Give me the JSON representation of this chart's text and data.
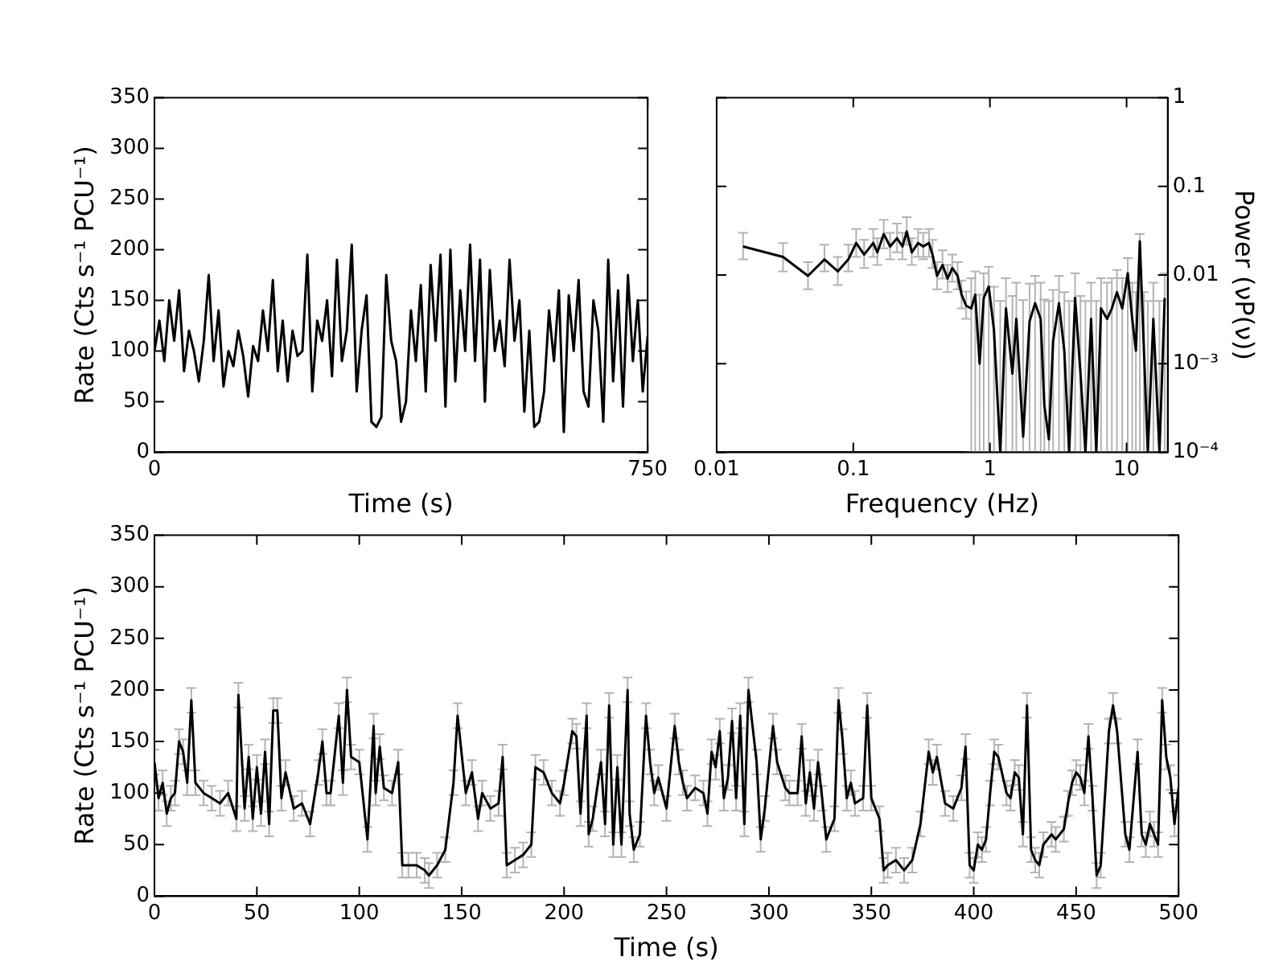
{
  "chart_data": [
    {
      "type": "line",
      "xlabel": "Time (s)",
      "ylabel": "Rate (Cts s⁻¹ PCU⁻¹)",
      "color": "#000000",
      "marker": "none",
      "grid": false,
      "xlim": [
        0,
        750
      ],
      "xticks": [
        0,
        750
      ],
      "ylim": [
        0,
        350
      ],
      "yticks": [
        0,
        50,
        100,
        150,
        200,
        250,
        300,
        350
      ],
      "x": [
        0,
        7.5,
        15,
        22.5,
        30,
        37.5,
        45,
        52.5,
        60,
        67.5,
        75,
        82.5,
        90,
        97.5,
        105,
        112.5,
        120,
        127.5,
        135,
        142.5,
        150,
        157.5,
        165,
        172.5,
        180,
        187.5,
        195,
        202.5,
        210,
        217.5,
        225,
        232.5,
        240,
        247.5,
        255,
        262.5,
        270,
        277.5,
        285,
        292.5,
        300,
        307.5,
        315,
        322.5,
        330,
        337.5,
        345,
        352.5,
        360,
        367.5,
        375,
        382.5,
        390,
        397.5,
        405,
        412.5,
        420,
        427.5,
        435,
        442.5,
        450,
        457.5,
        465,
        472.5,
        480,
        487.5,
        495,
        502.5,
        510,
        517.5,
        525,
        532.5,
        540,
        547.5,
        555,
        562.5,
        570,
        577.5,
        585,
        592.5,
        600,
        607.5,
        615,
        622.5,
        630,
        637.5,
        645,
        652.5,
        660,
        667.5,
        675,
        682.5,
        690,
        697.5,
        705,
        712.5,
        720,
        727.5,
        735,
        742.5,
        750
      ],
      "values": [
        100,
        130,
        90,
        150,
        110,
        160,
        80,
        120,
        100,
        70,
        110,
        175,
        90,
        140,
        65,
        100,
        85,
        120,
        95,
        55,
        105,
        90,
        140,
        100,
        170,
        80,
        130,
        70,
        120,
        95,
        100,
        195,
        60,
        130,
        110,
        150,
        75,
        190,
        90,
        120,
        205,
        60,
        120,
        155,
        30,
        25,
        35,
        175,
        110,
        90,
        30,
        50,
        140,
        90,
        165,
        60,
        185,
        110,
        195,
        45,
        200,
        70,
        160,
        100,
        205,
        90,
        190,
        50,
        180,
        100,
        130,
        85,
        190,
        110,
        150,
        40,
        120,
        25,
        30,
        60,
        140,
        90,
        160,
        20,
        155,
        100,
        170,
        60,
        45,
        150,
        120,
        30,
        190,
        70,
        160,
        45,
        175,
        90,
        150,
        60,
        115
      ]
    },
    {
      "type": "line",
      "xlabel": "Frequency (Hz)",
      "ylabel": "Power (νP(ν))",
      "color": "#000000",
      "marker": "none",
      "grid": false,
      "log": "xy",
      "xlim": [
        0.01,
        20
      ],
      "xticks": [
        0.01,
        0.1,
        1,
        10
      ],
      "ylim": [
        0.0001,
        1
      ],
      "yticks": [
        {
          "value": 0.0001,
          "label": "10⁻⁴"
        },
        {
          "value": 0.001,
          "label": "10⁻³"
        },
        0.01,
        0.1,
        1
      ],
      "x": [
        0.0156,
        0.0306,
        0.0466,
        0.0615,
        0.077,
        0.092,
        0.105,
        0.12,
        0.14,
        0.15,
        0.167,
        0.186,
        0.209,
        0.229,
        0.246,
        0.268,
        0.298,
        0.325,
        0.358,
        0.38,
        0.41,
        0.45,
        0.49,
        0.53,
        0.58,
        0.62,
        0.67,
        0.73,
        0.78,
        0.84,
        0.9,
        0.98,
        1.07,
        1.19,
        1.31,
        1.46,
        1.56,
        1.75,
        1.95,
        2.14,
        2.35,
        2.5,
        2.7,
        2.9,
        3.2,
        3.5,
        3.8,
        4.2,
        4.6,
        5,
        5.5,
        6,
        6.5,
        7.2,
        7.8,
        8.5,
        9.3,
        10.2,
        11,
        11.7,
        12.5,
        13.4,
        14.3,
        15.7,
        17.4,
        19
      ],
      "values": [
        0.021,
        0.016,
        0.0098,
        0.015,
        0.011,
        0.015,
        0.023,
        0.017,
        0.023,
        0.018,
        0.029,
        0.021,
        0.026,
        0.021,
        0.031,
        0.018,
        0.023,
        0.021,
        0.023,
        0.017,
        0.0098,
        0.013,
        0.0091,
        0.012,
        0.0098,
        0.006,
        0.0045,
        0.0042,
        0.006,
        0.001,
        0.0055,
        0.0074,
        0.0024,
        0.0001,
        0.0042,
        0.00077,
        0.0032,
        0.00015,
        0.003,
        0.0048,
        0.0032,
        0.00034,
        0.00014,
        0.0018,
        0.0048,
        0.0014,
        0.0001,
        0.0055,
        0.00077,
        0.0001,
        0.0032,
        0.0001,
        0.0042,
        0.0032,
        0.0042,
        0.0064,
        0.0042,
        0.0105,
        0.0032,
        0.0014,
        0.024,
        0.0014,
        0.0001,
        0.0032,
        0.0001,
        0.0055
      ],
      "errors": [
        [
          0.015,
          0.03
        ],
        [
          0.011,
          0.023
        ],
        [
          0.0069,
          0.014
        ],
        [
          0.011,
          0.022
        ],
        [
          0.0077,
          0.016
        ],
        [
          0.011,
          0.022
        ],
        [
          0.016,
          0.033
        ],
        [
          0.012,
          0.025
        ],
        [
          0.016,
          0.033
        ],
        [
          0.013,
          0.026
        ],
        [
          0.02,
          0.042
        ],
        [
          0.015,
          0.03
        ],
        [
          0.018,
          0.038
        ],
        [
          0.015,
          0.03
        ],
        [
          0.022,
          0.045
        ],
        [
          0.013,
          0.026
        ],
        [
          0.016,
          0.033
        ],
        [
          0.015,
          0.03
        ],
        [
          0.016,
          0.033
        ],
        [
          0.012,
          0.025
        ],
        [
          0.0069,
          0.014
        ],
        [
          0.0091,
          0.019
        ],
        [
          0.0064,
          0.013
        ],
        [
          0.0084,
          0.017
        ],
        [
          0.0069,
          0.014
        ],
        [
          0.0042,
          0.0087
        ],
        [
          0.0032,
          0.0065
        ],
        [
          0.0001,
          0.0092
        ],
        [
          0.0001,
          0.011
        ],
        [
          0.0001,
          0.006
        ],
        [
          0.0001,
          0.0105
        ],
        [
          0.0001,
          0.0124
        ],
        [
          0.0001,
          0.0074
        ],
        [
          0.0001,
          0.0051
        ],
        [
          0.0001,
          0.0092
        ],
        [
          0.0001,
          0.0058
        ],
        [
          0.0001,
          0.0082
        ],
        [
          0.0001,
          0.0052
        ],
        [
          0.0001,
          0.008
        ],
        [
          0.0001,
          0.0098
        ],
        [
          0.0001,
          0.0082
        ],
        [
          0.0001,
          0.0053
        ],
        [
          0.0001,
          0.0051
        ],
        [
          0.0001,
          0.0068
        ],
        [
          0.0001,
          0.0098
        ],
        [
          0.0001,
          0.0064
        ],
        [
          0.0001,
          0.0051
        ],
        [
          0.0001,
          0.0105
        ],
        [
          0.0001,
          0.0058
        ],
        [
          0.0001,
          0.0051
        ],
        [
          0.0001,
          0.0082
        ],
        [
          0.0001,
          0.0051
        ],
        [
          0.0001,
          0.0092
        ],
        [
          0.0001,
          0.0082
        ],
        [
          0.0001,
          0.0092
        ],
        [
          0.0001,
          0.0114
        ],
        [
          0.0001,
          0.0092
        ],
        [
          0.0001,
          0.0155
        ],
        [
          0.0001,
          0.0082
        ],
        [
          0.0001,
          0.0064
        ],
        [
          0.0001,
          0.029
        ],
        [
          0.0001,
          0.0064
        ],
        [
          0.0001,
          0.0051
        ],
        [
          0.0001,
          0.0082
        ],
        [
          0.0001,
          0.0051
        ],
        [
          0.0001,
          0.0105
        ]
      ]
    },
    {
      "type": "line",
      "xlabel": "Time (s)",
      "ylabel": "Rate (Cts s⁻¹ PCU⁻¹)",
      "color": "#000000",
      "marker": "none",
      "grid": false,
      "xlim": [
        0,
        500
      ],
      "xticks": [
        0,
        50,
        100,
        150,
        200,
        250,
        300,
        350,
        400,
        450,
        500
      ],
      "ylim": [
        0,
        350
      ],
      "yticks": [
        0,
        50,
        100,
        150,
        200,
        250,
        300,
        350
      ],
      "x": [
        0,
        2,
        4,
        6,
        8,
        10,
        12,
        14,
        16,
        18,
        20,
        24,
        28,
        32,
        36,
        40,
        41,
        44,
        46,
        48,
        50,
        52,
        54,
        56,
        58,
        60,
        62,
        64,
        68,
        72,
        76,
        80,
        82,
        84,
        86,
        90,
        92,
        94,
        96,
        100,
        104,
        107,
        108,
        110,
        112,
        116,
        119,
        121,
        124,
        128,
        132,
        134,
        138,
        142,
        146,
        148,
        152,
        155,
        158,
        160,
        164,
        168,
        170,
        172,
        176,
        180,
        184,
        186,
        190,
        194,
        198,
        200,
        204,
        206,
        208,
        211,
        212,
        214,
        218,
        220,
        222,
        224,
        226,
        228,
        231,
        232,
        234,
        237,
        240,
        242,
        244,
        246,
        250,
        254,
        256,
        258,
        260,
        264,
        268,
        270,
        272,
        274,
        276,
        278,
        280,
        282,
        284,
        286,
        288,
        290,
        294,
        296,
        298,
        302,
        304,
        308,
        310,
        314,
        316,
        318,
        320,
        322,
        324,
        326,
        328,
        332,
        334,
        336,
        338,
        340,
        342,
        346,
        348,
        350,
        354,
        356,
        358,
        362,
        366,
        370,
        374,
        378,
        380,
        382,
        386,
        390,
        394,
        396,
        398,
        400,
        402,
        404,
        406,
        408,
        410,
        412,
        416,
        418,
        420,
        422,
        424,
        426,
        428,
        430,
        432,
        434,
        438,
        440,
        444,
        446,
        448,
        450,
        452,
        454,
        456,
        458,
        460,
        462,
        466,
        468,
        470,
        474,
        476,
        480,
        482,
        484,
        486,
        488,
        490,
        492,
        494,
        496,
        498,
        500
      ],
      "values": [
        130,
        95,
        110,
        80,
        95,
        100,
        150,
        140,
        110,
        190,
        110,
        100,
        95,
        90,
        100,
        75,
        195,
        85,
        135,
        75,
        125,
        80,
        140,
        70,
        180,
        180,
        95,
        120,
        85,
        90,
        70,
        120,
        150,
        100,
        100,
        175,
        110,
        200,
        135,
        130,
        55,
        165,
        100,
        145,
        105,
        100,
        130,
        30,
        30,
        30,
        25,
        20,
        30,
        45,
        110,
        175,
        100,
        120,
        75,
        100,
        85,
        90,
        135,
        30,
        35,
        40,
        50,
        125,
        120,
        100,
        90,
        110,
        160,
        155,
        80,
        175,
        60,
        75,
        130,
        70,
        185,
        50,
        125,
        50,
        200,
        80,
        45,
        60,
        175,
        130,
        100,
        115,
        85,
        165,
        130,
        110,
        95,
        105,
        100,
        80,
        140,
        125,
        160,
        95,
        115,
        170,
        95,
        175,
        70,
        200,
        130,
        55,
        85,
        165,
        130,
        105,
        100,
        100,
        155,
        90,
        120,
        85,
        130,
        95,
        55,
        75,
        190,
        150,
        95,
        110,
        90,
        95,
        185,
        95,
        75,
        25,
        30,
        35,
        25,
        35,
        70,
        140,
        120,
        135,
        90,
        85,
        105,
        145,
        30,
        25,
        50,
        45,
        55,
        100,
        140,
        135,
        100,
        95,
        120,
        115,
        60,
        185,
        45,
        35,
        30,
        50,
        60,
        55,
        65,
        90,
        110,
        120,
        115,
        100,
        155,
        95,
        20,
        30,
        160,
        185,
        160,
        60,
        45,
        140,
        60,
        50,
        70,
        60,
        50,
        190,
        135,
        115,
        70,
        105
      ],
      "errors": [
        12,
        12,
        12,
        12,
        12,
        12,
        12,
        12,
        12,
        12,
        12,
        12,
        12,
        12,
        12,
        12,
        12,
        12,
        12,
        12,
        12,
        12,
        12,
        12,
        12,
        12,
        12,
        12,
        12,
        12,
        12,
        12,
        12,
        12,
        12,
        12,
        12,
        12,
        12,
        12,
        12,
        12,
        12,
        12,
        12,
        12,
        12,
        12,
        12,
        12,
        12,
        12,
        12,
        12,
        12,
        12,
        12,
        12,
        12,
        12,
        12,
        12,
        12,
        12,
        12,
        12,
        12,
        12,
        12,
        12,
        12,
        12,
        12,
        12,
        12,
        12,
        12,
        12,
        12,
        12,
        12,
        12,
        12,
        12,
        12,
        12,
        12,
        12,
        12,
        12,
        12,
        12,
        12,
        12,
        12,
        12,
        12,
        12,
        12,
        12,
        12,
        12,
        12,
        12,
        12,
        12,
        12,
        12,
        12,
        12,
        12,
        12,
        12,
        12,
        12,
        12,
        12,
        12,
        12,
        12,
        12,
        12,
        12,
        12,
        12,
        12,
        12,
        12,
        12,
        12,
        12,
        12,
        12,
        12,
        12,
        12,
        12,
        12,
        12,
        12,
        12,
        12,
        12,
        12,
        12,
        12,
        12,
        12,
        12,
        12,
        12,
        12,
        12,
        12,
        12,
        12,
        12,
        12,
        12,
        12,
        12,
        12,
        12,
        12,
        12,
        12,
        12,
        12,
        12,
        12,
        12,
        12,
        12,
        12,
        12,
        12,
        12,
        12,
        12,
        12,
        12,
        12,
        12,
        12,
        12,
        12,
        12,
        12,
        12,
        12,
        12,
        12,
        12,
        12
      ]
    }
  ]
}
